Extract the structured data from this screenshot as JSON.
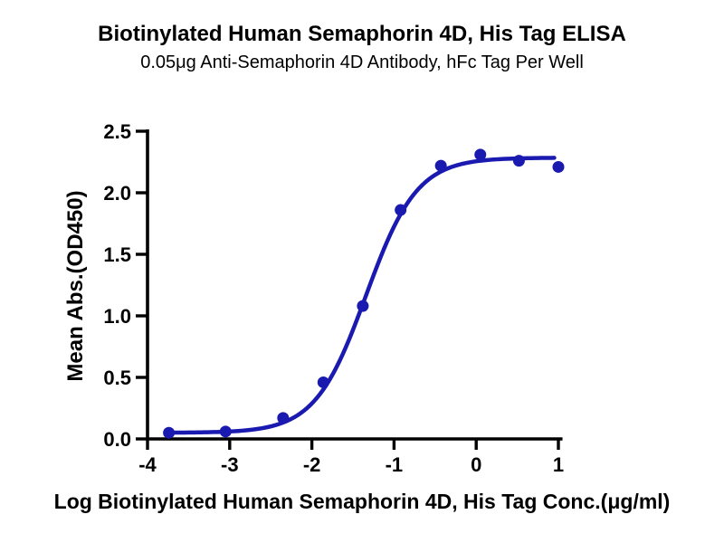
{
  "chart_data": {
    "type": "scatter",
    "title": "Biotinylated Human Semaphorin 4D, His Tag ELISA",
    "subtitle": "0.05μg Anti-Semaphorin 4D Antibody, hFc Tag Per Well",
    "xlabel": "Log Biotinylated Human Semaphorin 4D, His Tag Conc.(μg/ml)",
    "ylabel": "Mean Abs.(OD450)",
    "xlim": [
      -4,
      1.05
    ],
    "ylim": [
      0,
      2.5
    ],
    "x_ticks": [
      -4,
      -3,
      -2,
      -1,
      0,
      1
    ],
    "x_tick_labels": [
      "-4",
      "-3",
      "-2",
      "-1",
      "0",
      "1"
    ],
    "y_ticks": [
      0.0,
      0.5,
      1.0,
      1.5,
      2.0,
      2.5
    ],
    "y_tick_labels": [
      "0.0",
      "0.5",
      "1.0",
      "1.5",
      "2.0",
      "2.5"
    ],
    "grid": false,
    "legend": "none",
    "series": [
      {
        "name": "Biotinylated Human Semaphorin 4D, His Tag",
        "points": [
          {
            "log_conc": -3.74,
            "od450": 0.05
          },
          {
            "log_conc": -3.05,
            "od450": 0.06
          },
          {
            "log_conc": -2.35,
            "od450": 0.17
          },
          {
            "log_conc": -1.86,
            "od450": 0.46
          },
          {
            "log_conc": -1.38,
            "od450": 1.08
          },
          {
            "log_conc": -0.92,
            "od450": 1.86
          },
          {
            "log_conc": -0.43,
            "od450": 2.22
          },
          {
            "log_conc": 0.05,
            "od450": 2.31
          },
          {
            "log_conc": 0.52,
            "od450": 2.26
          },
          {
            "log_conc": 1.0,
            "od450": 2.21
          }
        ]
      }
    ],
    "fit_curve": {
      "model": "4PL",
      "bottom": 0.05,
      "top": 2.285,
      "log_ec50": -1.34,
      "hill_slope": 1.4,
      "x_start": -3.74,
      "x_end": 0.95
    },
    "colors": {
      "marker": "#1a1ab0",
      "curve": "#1a1ab0",
      "axis": "#000000",
      "background": "#ffffff"
    }
  }
}
